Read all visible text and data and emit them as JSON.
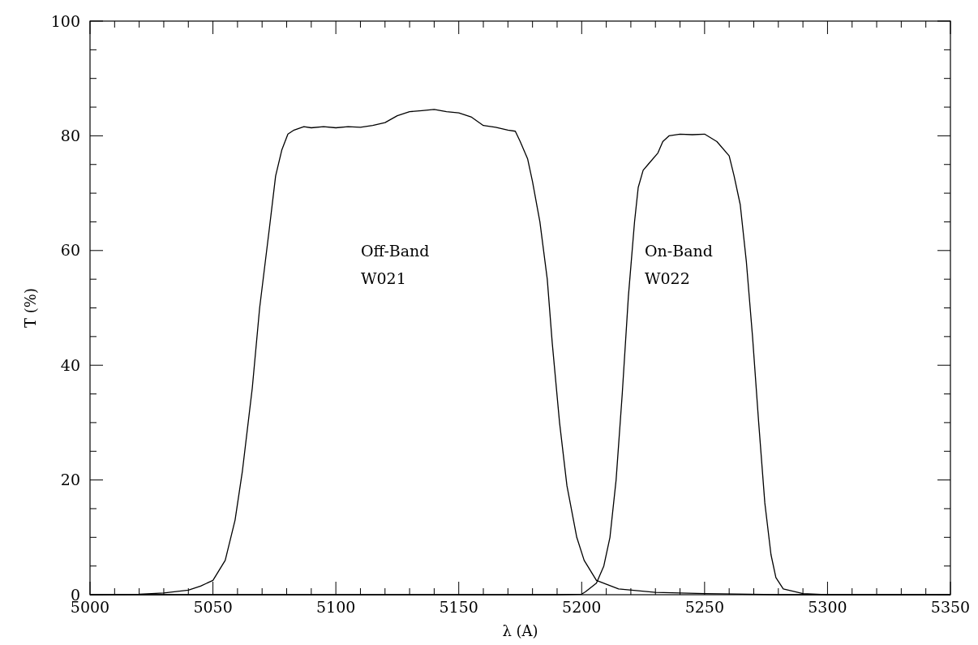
{
  "chart_data": {
    "type": "line",
    "xlabel": "λ (A)",
    "ylabel": "T (%)",
    "xlim": [
      5000,
      5350
    ],
    "ylim": [
      0,
      100
    ],
    "xticks": [
      5000,
      {
        "value": 5010,
        "label": null
      },
      {
        "value": 5020,
        "label": null
      },
      {
        "value": 5030,
        "label": null
      },
      {
        "value": 5040,
        "label": null
      },
      5050,
      {
        "value": 5060,
        "label": null
      },
      {
        "value": 5070,
        "label": null
      },
      {
        "value": 5080,
        "label": null
      },
      {
        "value": 5090,
        "label": null
      },
      5100,
      {
        "value": 5110,
        "label": null
      },
      {
        "value": 5120,
        "label": null
      },
      {
        "value": 5130,
        "label": null
      },
      {
        "value": 5140,
        "label": null
      },
      5150,
      {
        "value": 5160,
        "label": null
      },
      {
        "value": 5170,
        "label": null
      },
      {
        "value": 5180,
        "label": null
      },
      {
        "value": 5190,
        "label": null
      },
      5200,
      {
        "value": 5210,
        "label": null
      },
      {
        "value": 5220,
        "label": null
      },
      {
        "value": 5230,
        "label": null
      },
      {
        "value": 5240,
        "label": null
      },
      5250,
      {
        "value": 5260,
        "label": null
      },
      {
        "value": 5270,
        "label": null
      },
      {
        "value": 5280,
        "label": null
      },
      {
        "value": 5290,
        "label": null
      },
      5300,
      {
        "value": 5310,
        "label": null
      },
      {
        "value": 5320,
        "label": null
      },
      {
        "value": 5330,
        "label": null
      },
      {
        "value": 5340,
        "label": null
      },
      5350
    ],
    "yticks": [
      0,
      {
        "value": 5,
        "label": null
      },
      {
        "value": 10,
        "label": null
      },
      {
        "value": 15,
        "label": null
      },
      20,
      {
        "value": 25,
        "label": null
      },
      {
        "value": 30,
        "label": null
      },
      {
        "value": 35,
        "label": null
      },
      40,
      {
        "value": 45,
        "label": null
      },
      {
        "value": 50,
        "label": null
      },
      {
        "value": 55,
        "label": null
      },
      60,
      {
        "value": 65,
        "label": null
      },
      {
        "value": 70,
        "label": null
      },
      {
        "value": 75,
        "label": null
      },
      80,
      {
        "value": 85,
        "label": null
      },
      {
        "value": 90,
        "label": null
      },
      {
        "value": 95,
        "label": null
      },
      100
    ],
    "grid": false,
    "marker": "none",
    "line_style": "solid",
    "series": [
      {
        "color": "#000000",
        "x": [
          5000,
          5020,
          5030,
          5040,
          5045,
          5050,
          5055,
          5059,
          5062,
          5066,
          5069,
          5073,
          5075.5,
          5078,
          5080.5,
          5083,
          5087,
          5090,
          5095,
          5100,
          5105,
          5110,
          5115,
          5120,
          5125,
          5130,
          5135,
          5140,
          5145,
          5150,
          5155,
          5160,
          5165,
          5170,
          5173,
          5175,
          5178,
          5180,
          5183,
          5186,
          5188,
          5191,
          5194,
          5198,
          5201,
          5206,
          5215,
          5230,
          5250,
          5280,
          5350
        ],
        "values": [
          0,
          0.1,
          0.3,
          0.8,
          1.5,
          2.5,
          6,
          13,
          21.6,
          36,
          50,
          64,
          73,
          77.5,
          80.3,
          81,
          81.6,
          81.4,
          81.6,
          81.4,
          81.6,
          81.5,
          81.8,
          82.3,
          83.5,
          84.2,
          84.4,
          84.6,
          84.2,
          84,
          83.3,
          81.8,
          81.5,
          81,
          80.8,
          79,
          76,
          72,
          65,
          55,
          44,
          30,
          19,
          10,
          6,
          2.5,
          1,
          0.4,
          0.2,
          0,
          0
        ]
      },
      {
        "color": "#000000",
        "x": [
          5000,
          5190,
          5200,
          5201.5,
          5206,
          5209,
          5211.5,
          5214,
          5216.5,
          5219,
          5221.5,
          5223,
          5225,
          5227,
          5231,
          5233,
          5235.5,
          5240,
          5245,
          5250,
          5255,
          5260,
          5262,
          5264.5,
          5267,
          5269.5,
          5272,
          5274.5,
          5277,
          5279,
          5282,
          5290,
          5300,
          5350
        ],
        "values": [
          0,
          0,
          0.1,
          0.5,
          2,
          5,
          10,
          20,
          35,
          52,
          65,
          71,
          74,
          75,
          77,
          79,
          80,
          80.3,
          80.2,
          80.3,
          79,
          76.5,
          73,
          68,
          58,
          45,
          30,
          16,
          7,
          3,
          1,
          0.2,
          0,
          0
        ]
      }
    ],
    "annotations": [
      "Off-Band",
      "W021",
      "On-Band",
      "W022"
    ]
  }
}
